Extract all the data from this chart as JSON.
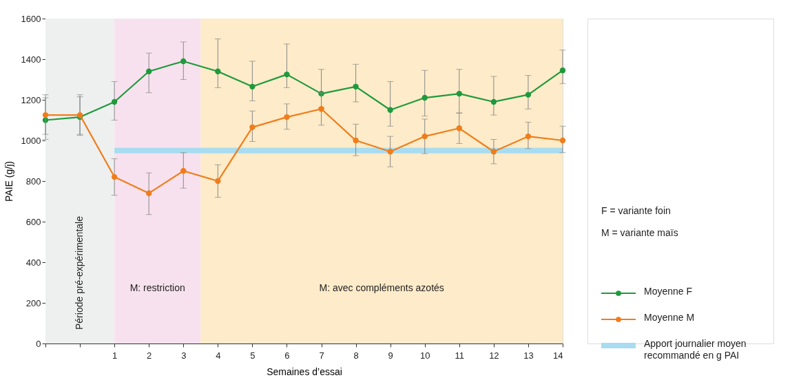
{
  "chart_data": {
    "type": "line",
    "xlabel": "Semaines d’essai",
    "ylabel": "PAIE (g/j)",
    "x": [
      -1,
      0,
      1,
      2,
      3,
      4,
      5,
      6,
      7,
      8,
      9,
      10,
      11,
      12,
      13,
      14
    ],
    "xlim": [
      -1,
      14
    ],
    "xticks": [
      {
        "value": -1,
        "label": null
      },
      {
        "value": 0,
        "label": null
      },
      1,
      2,
      3,
      4,
      5,
      6,
      7,
      8,
      9,
      10,
      11,
      12,
      13,
      14
    ],
    "ylim": [
      0,
      1600
    ],
    "yticks": [
      0,
      200,
      400,
      600,
      800,
      1000,
      1200,
      1400,
      1600
    ],
    "grid": false,
    "legend": "right",
    "marker": "circle",
    "bands": [
      {
        "axis": "x",
        "from": -1,
        "to": 1,
        "label": "Période pré-expérimentale",
        "color": "#eef0f0"
      },
      {
        "axis": "x",
        "from": 1,
        "to": 3.5,
        "label": "M: restriction",
        "color": "#f8e1ee"
      },
      {
        "axis": "x",
        "from": 3.5,
        "to": 14,
        "label": "M: avec compléments azotés",
        "color": "#fdebc9"
      }
    ],
    "series": [
      {
        "name": "Moyenne F",
        "color": "#1e9a3c",
        "values": [
          1100,
          1115,
          1190,
          1340,
          1390,
          1340,
          1265,
          1325,
          1230,
          1265,
          1150,
          1210,
          1230,
          1190,
          1225,
          1345
        ],
        "errors": [
          [
            1030,
            1210
          ],
          [
            1030,
            1215
          ],
          [
            1100,
            1290
          ],
          [
            1235,
            1430
          ],
          [
            1300,
            1485
          ],
          [
            1260,
            1500
          ],
          [
            1195,
            1390
          ],
          [
            1260,
            1475
          ],
          [
            1160,
            1350
          ],
          [
            1190,
            1375
          ],
          [
            1070,
            1290
          ],
          [
            1120,
            1345
          ],
          [
            1135,
            1350
          ],
          [
            1125,
            1315
          ],
          [
            1155,
            1320
          ],
          [
            1280,
            1445
          ]
        ]
      },
      {
        "name": "Moyenne M",
        "color": "#f07d1a",
        "values": [
          1125,
          1125,
          820,
          740,
          850,
          800,
          1065,
          1115,
          1155,
          1000,
          945,
          1020,
          1060,
          945,
          1020,
          1000
        ],
        "errors": [
          [
            1005,
            1225
          ],
          [
            1025,
            1225
          ],
          [
            730,
            910
          ],
          [
            635,
            840
          ],
          [
            765,
            940
          ],
          [
            720,
            880
          ],
          [
            995,
            1145
          ],
          [
            1055,
            1180
          ],
          [
            1075,
            1235
          ],
          [
            925,
            1080
          ],
          [
            870,
            1020
          ],
          [
            935,
            1105
          ],
          [
            985,
            1135
          ],
          [
            885,
            1005
          ],
          [
            960,
            1090
          ],
          [
            940,
            1070
          ]
        ]
      },
      {
        "name": "Apport journalier moyen recommandé en g PAI",
        "color": "#a8dcf0",
        "type": "line",
        "marker": "none",
        "x": [
          1,
          14
        ],
        "values": [
          950,
          950
        ]
      }
    ],
    "annotations": [
      "F  = variante foin",
      "M = variante maïs"
    ]
  }
}
